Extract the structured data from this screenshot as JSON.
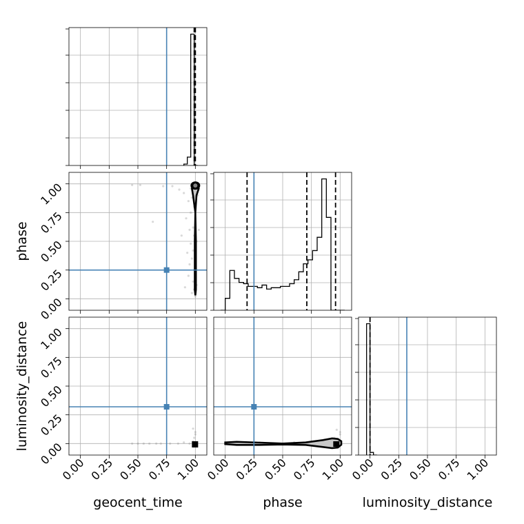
{
  "chart_data": {
    "type": "corner",
    "parameters": [
      "geocent_time",
      "phase",
      "luminosity_distance"
    ],
    "axis_labels": [
      "geocent_time",
      "phase",
      "luminosity_distance"
    ],
    "range": [
      [
        -0.1,
        1.1
      ],
      [
        -0.1,
        1.1
      ],
      [
        -0.1,
        1.1
      ]
    ],
    "ticks": [
      0.0,
      0.25,
      0.5,
      0.75,
      1.0
    ],
    "tick_labels": [
      "0.00",
      "0.25",
      "0.50",
      "0.75",
      "1.00"
    ],
    "truths": {
      "geocent_time": 0.75,
      "phase": 0.25,
      "luminosity_distance": 0.32
    },
    "quantiles": {
      "geocent_time": [
        0.99,
        1.0
      ],
      "phase": [
        0.19,
        0.71,
        0.96
      ],
      "luminosity_distance": [
        0.0
      ]
    },
    "histograms": {
      "geocent_time": {
        "bin_edges": [
          0.9,
          0.93,
          0.96,
          0.99,
          1.02
        ],
        "counts": [
          0.01,
          0.06,
          0.94,
          0.0
        ]
      },
      "phase": {
        "bin_edges": [
          -0.04,
          0.0,
          0.04,
          0.08,
          0.12,
          0.16,
          0.2,
          0.24,
          0.28,
          0.32,
          0.36,
          0.4,
          0.44,
          0.48,
          0.52,
          0.56,
          0.6,
          0.64,
          0.68,
          0.72,
          0.76,
          0.8,
          0.84,
          0.88,
          0.92,
          0.96,
          1.0,
          1.04
        ],
        "counts": [
          0.0,
          0.09,
          0.3,
          0.24,
          0.21,
          0.2,
          0.18,
          0.18,
          0.17,
          0.19,
          0.16,
          0.17,
          0.17,
          0.18,
          0.18,
          0.2,
          0.23,
          0.29,
          0.35,
          0.38,
          0.45,
          0.55,
          0.99,
          0.7,
          0.0,
          0.0,
          0.0
        ]
      },
      "luminosity_distance": {
        "bin_edges": [
          -0.03,
          0.0,
          0.03,
          0.06
        ],
        "counts": [
          1.0,
          0.02,
          0.0
        ]
      }
    },
    "scatter": [
      {
        "x": "geocent_time",
        "y": "phase",
        "points": [
          [
            0.45,
            0.99
          ],
          [
            0.52,
            0.99
          ],
          [
            0.63,
            0.67
          ],
          [
            0.72,
            0.98
          ],
          [
            0.8,
            0.98
          ],
          [
            0.86,
            0.95
          ],
          [
            0.88,
            0.55
          ],
          [
            0.9,
            0.92
          ],
          [
            0.91,
            0.1
          ],
          [
            0.92,
            0.7
          ],
          [
            0.93,
            0.4
          ],
          [
            0.94,
            0.85
          ],
          [
            0.94,
            0.2
          ],
          [
            0.95,
            0.6
          ],
          [
            0.95,
            0.3
          ],
          [
            0.96,
            0.96
          ],
          [
            0.96,
            0.75
          ],
          [
            0.96,
            0.48
          ],
          [
            0.97,
            0.05
          ],
          [
            0.97,
            0.35
          ],
          [
            0.97,
            0.88
          ],
          [
            0.98,
            0.15
          ],
          [
            0.98,
            0.62
          ],
          [
            0.98,
            0.42
          ],
          [
            0.99,
            0.08
          ],
          [
            0.99,
            0.25
          ],
          [
            0.99,
            0.55
          ],
          [
            0.99,
            0.8
          ],
          [
            1.0,
            0.02
          ],
          [
            1.0,
            0.32
          ],
          [
            1.0,
            0.7
          ],
          [
            1.01,
            0.5
          ],
          [
            1.01,
            0.12
          ],
          [
            1.02,
            0.9
          ],
          [
            1.03,
            0.6
          ]
        ]
      },
      {
        "x": "geocent_time",
        "y": "luminosity_distance",
        "points": [
          [
            0.45,
            0.0
          ],
          [
            0.5,
            0.0
          ],
          [
            0.55,
            0.0
          ],
          [
            0.6,
            0.0
          ],
          [
            0.66,
            0.0
          ],
          [
            0.7,
            0.0
          ],
          [
            0.78,
            0.0
          ],
          [
            0.85,
            0.0
          ],
          [
            0.9,
            0.01
          ],
          [
            0.95,
            0.0
          ],
          [
            0.98,
            0.02
          ],
          [
            0.99,
            0.05
          ],
          [
            1.0,
            0.1
          ],
          [
            0.98,
            0.13
          ],
          [
            1.0,
            0.08
          ]
        ]
      },
      {
        "x": "phase",
        "y": "luminosity_distance",
        "points": [
          [
            0.0,
            0.0
          ],
          [
            0.05,
            0.01
          ],
          [
            0.12,
            -0.01
          ],
          [
            0.2,
            0.0
          ],
          [
            0.3,
            0.01
          ],
          [
            0.4,
            0.0
          ],
          [
            0.5,
            0.0
          ],
          [
            0.6,
            0.01
          ],
          [
            0.7,
            0.0
          ],
          [
            0.8,
            0.0
          ],
          [
            0.9,
            0.02
          ],
          [
            0.95,
            0.05
          ],
          [
            1.0,
            0.08
          ],
          [
            0.97,
            0.12
          ],
          [
            1.0,
            0.1
          ]
        ]
      }
    ]
  }
}
